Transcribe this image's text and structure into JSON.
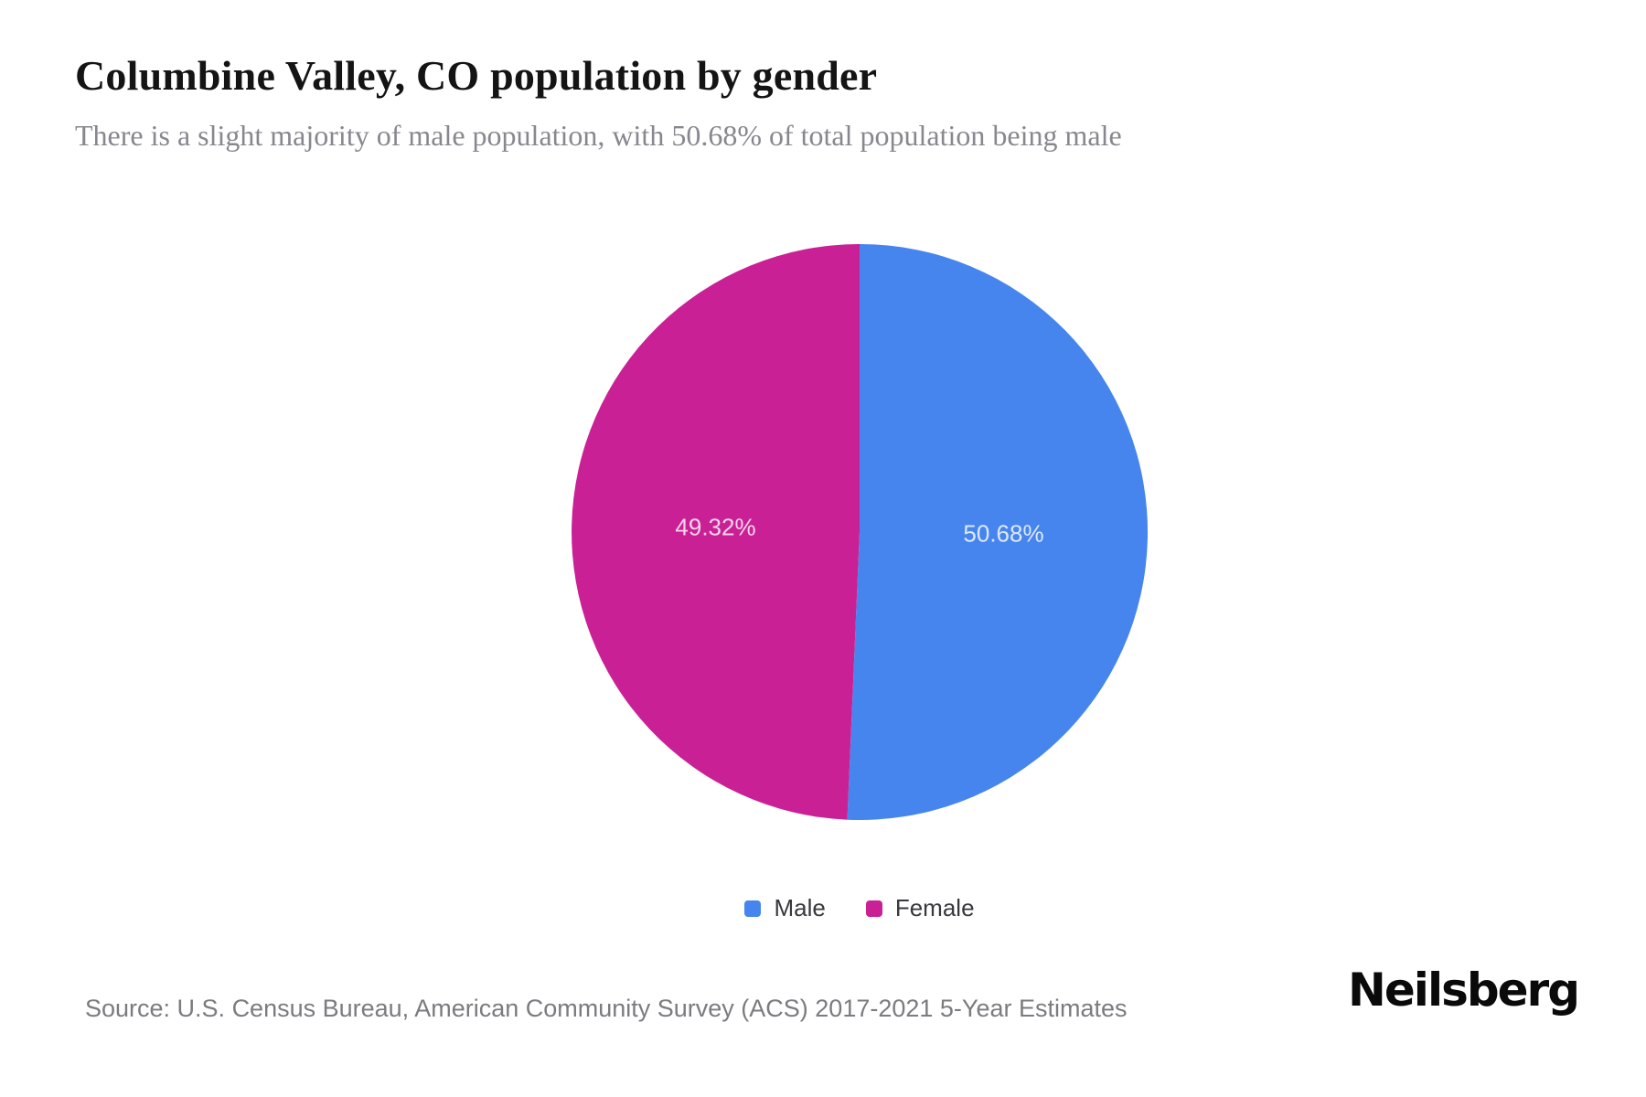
{
  "header": {
    "title": "Columbine Valley, CO population by gender",
    "subtitle": "There is a slight majority of male population, with 50.68% of total population being male"
  },
  "chart_data": {
    "type": "pie",
    "title": "Columbine Valley, CO population by gender",
    "start_angle": "top",
    "direction": "clockwise",
    "label_position": "inside",
    "legend_position": "bottom-center",
    "series": [
      {
        "name": "Male",
        "value": 50.68,
        "label": "50.68%",
        "color": "#4685EE"
      },
      {
        "name": "Female",
        "value": 49.32,
        "label": "49.32%",
        "color": "#CA2095"
      }
    ]
  },
  "legend": {
    "items": [
      {
        "label": "Male",
        "color": "#4685EE"
      },
      {
        "label": "Female",
        "color": "#CA2095"
      }
    ]
  },
  "footer": {
    "source": "Source: U.S. Census Bureau, American Community Survey (ACS) 2017-2021 5-Year Estimates",
    "brand": "Neilsberg"
  },
  "colors": {
    "title_text": "#141414",
    "subtitle_text": "#87878f",
    "legend_text": "#38383d",
    "source_text": "#7b7b80",
    "pie_label_text": "rgba(255,255,255,0.82)",
    "background": "#ffffff"
  }
}
